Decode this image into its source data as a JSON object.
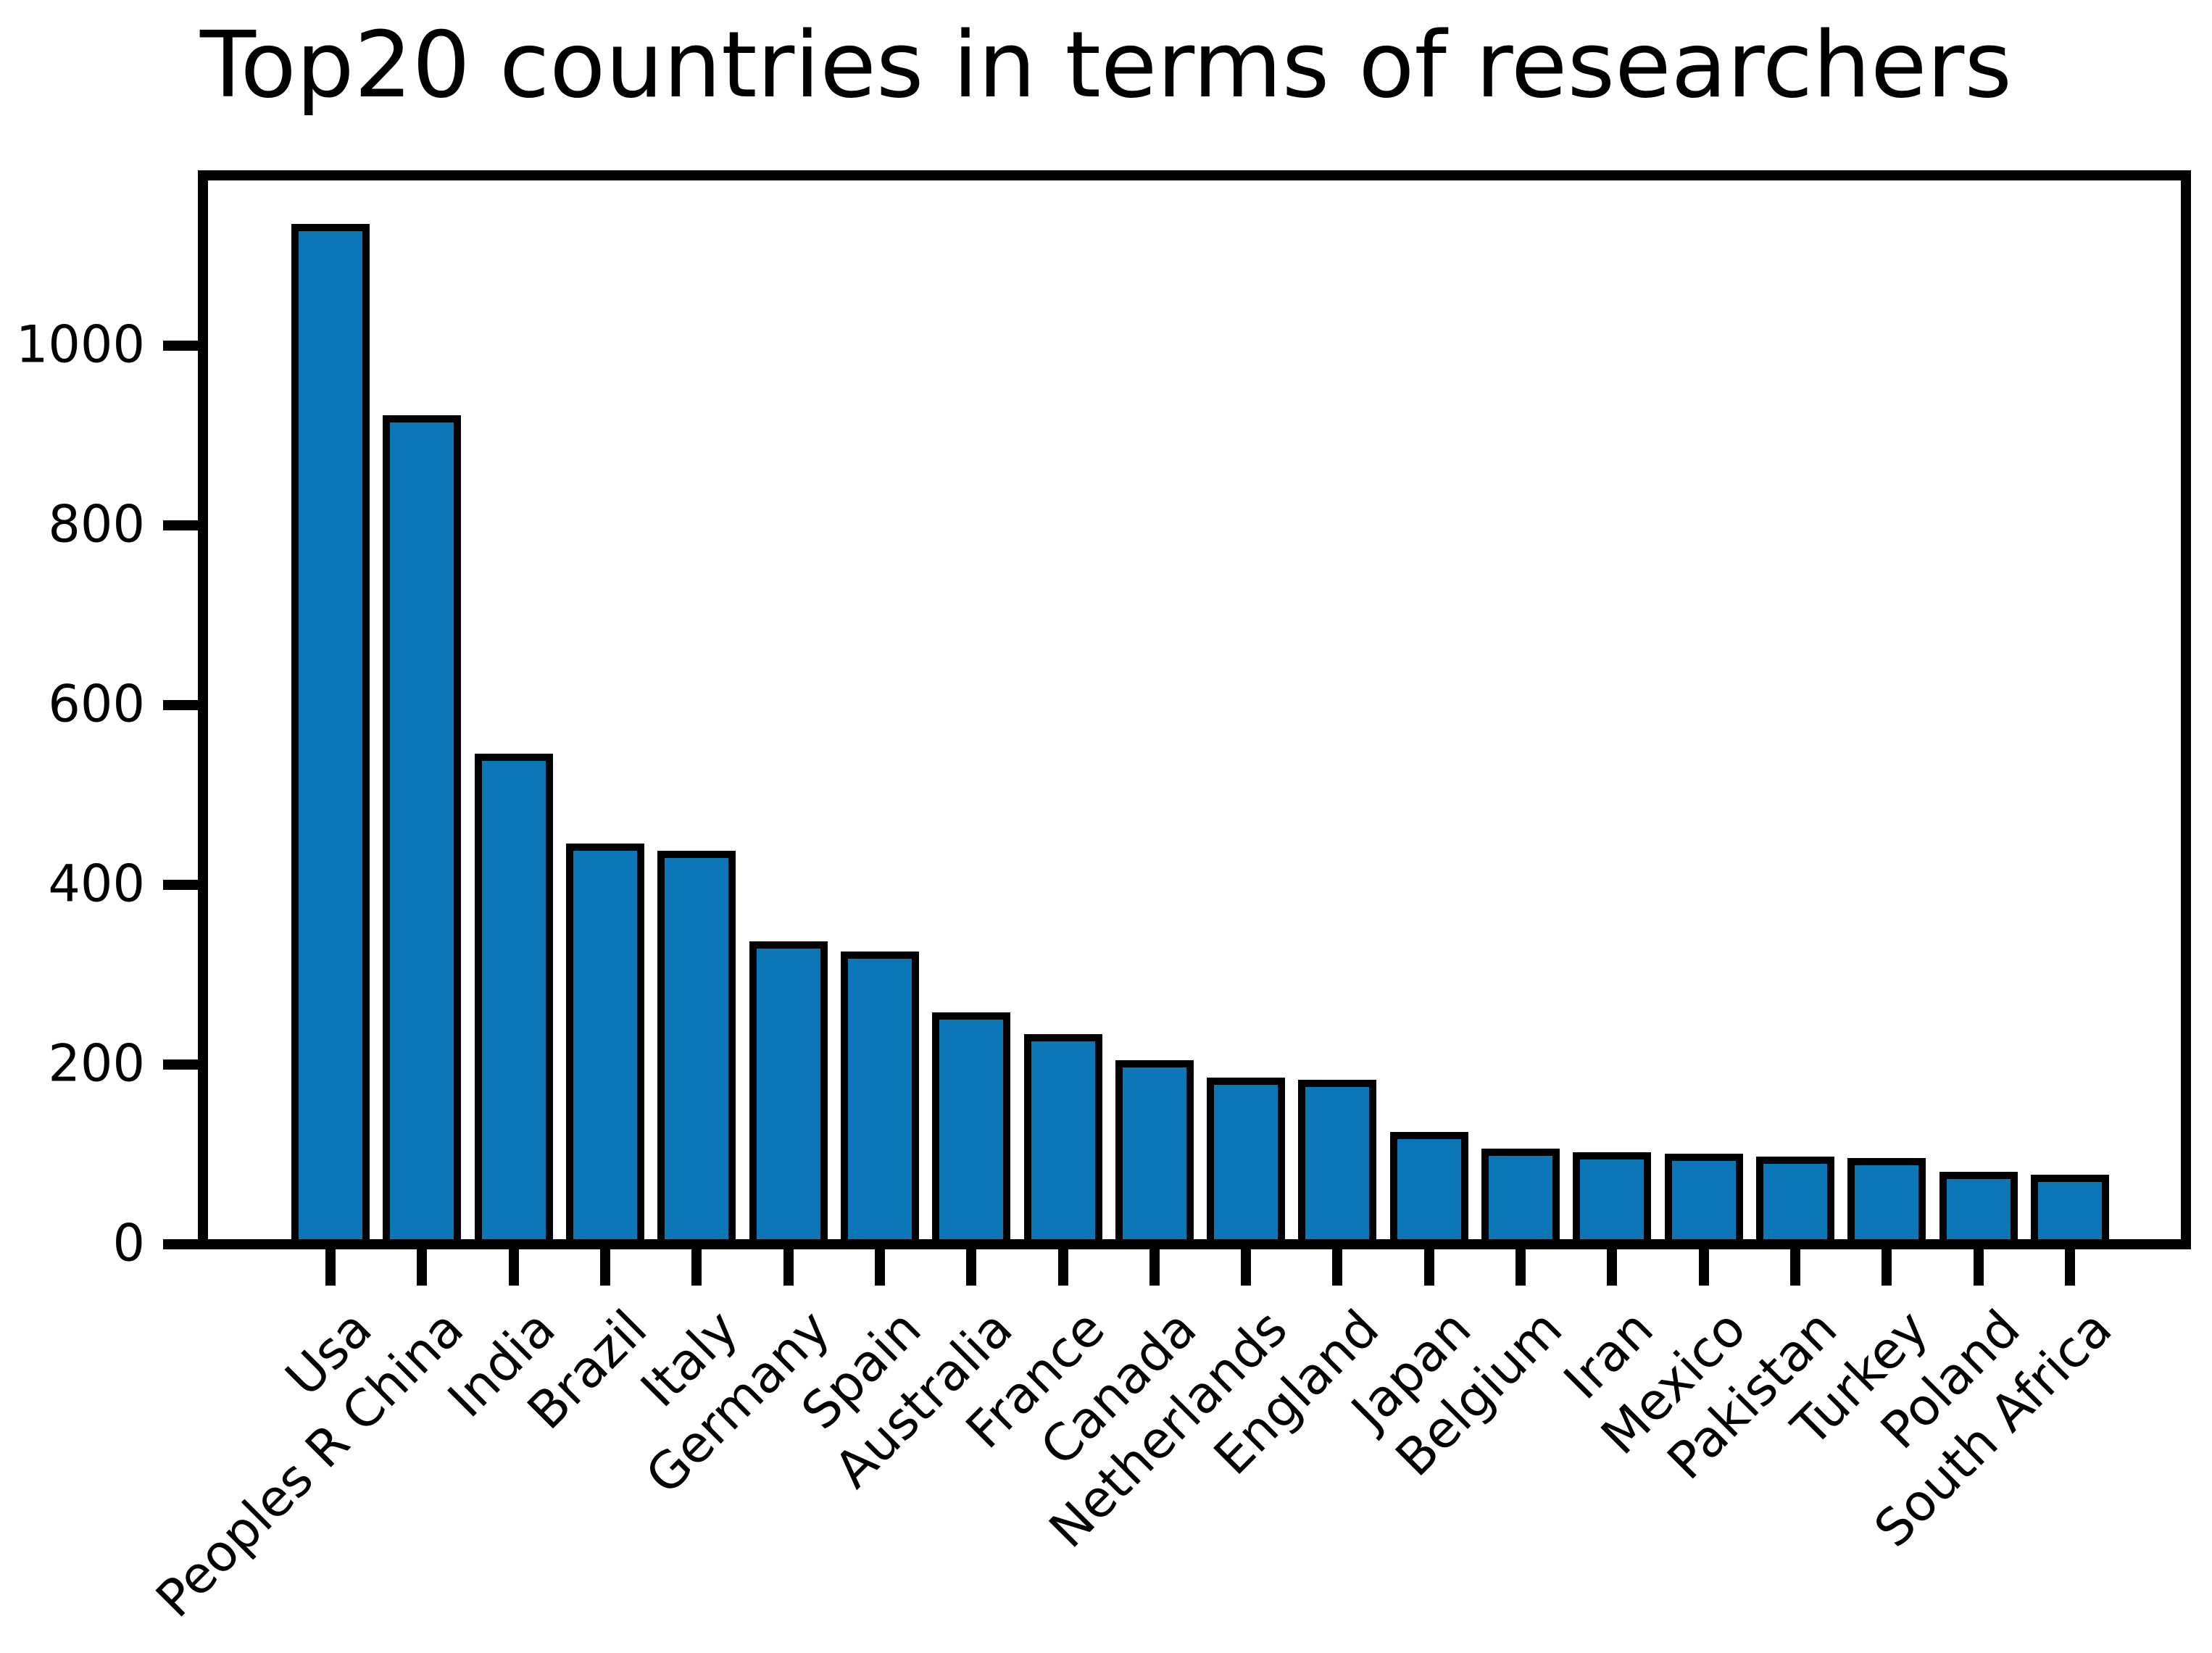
{
  "chart_data": {
    "type": "bar",
    "title": "Top20 countries in terms of researchers",
    "xlabel": "",
    "ylabel": "",
    "categories": [
      "Usa",
      "Peoples R China",
      "India",
      "Brazil",
      "Italy",
      "Germany",
      "Spain",
      "Australia",
      "France",
      "Canada",
      "Netherlands",
      "England",
      "Japan",
      "Belgium",
      "Iran",
      "Mexico",
      "Pakistan",
      "Turkey",
      "Poland",
      "South Africa"
    ],
    "values": [
      1130,
      917,
      540,
      440,
      432,
      331,
      320,
      252,
      228,
      199,
      180,
      177,
      119,
      101,
      97,
      95,
      92,
      90,
      75,
      72
    ],
    "yticks": [
      0,
      200,
      400,
      600,
      800,
      1000
    ],
    "ylim": [
      0,
      1178
    ],
    "x_tick_rotation_deg": 45,
    "grid": false,
    "legend_position": "none",
    "bar_color": "#0b77b7",
    "bar_edge_color": "#000000",
    "axis_color": "#000000",
    "text_color": "#000000",
    "background_color": "#ffffff"
  }
}
